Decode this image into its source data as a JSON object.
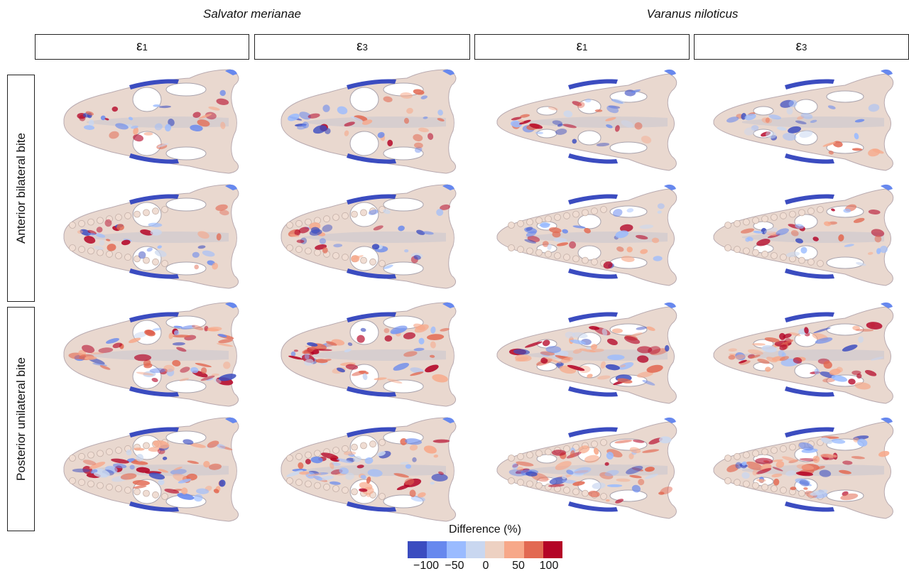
{
  "species": [
    {
      "name": "Salvator merianae"
    },
    {
      "name": "Varanus niloticus"
    }
  ],
  "columns": [
    {
      "symbol": "ε",
      "sub": "1"
    },
    {
      "symbol": "ε",
      "sub": "3"
    },
    {
      "symbol": "ε",
      "sub": "1"
    },
    {
      "symbol": "ε",
      "sub": "3"
    }
  ],
  "rows": [
    {
      "label": "Anterior bilateral bite"
    },
    {
      "label": "Posterior unilateral bite"
    }
  ],
  "legend": {
    "title": "Difference (%)",
    "ticks": [
      "−100",
      "−50",
      "0",
      "50",
      "100"
    ],
    "tick_values": [
      -100,
      -50,
      0,
      50,
      100
    ],
    "colors": [
      "#3b4cc0",
      "#6788ee",
      "#9abbff",
      "#c9d7f0",
      "#edd1c2",
      "#f7a889",
      "#e26952",
      "#b40426"
    ]
  },
  "palette": {
    "bone": "#e9d8cf",
    "bone_shade": "#c9c6cf",
    "blue": "#4a63d6",
    "red": "#c8252c"
  }
}
